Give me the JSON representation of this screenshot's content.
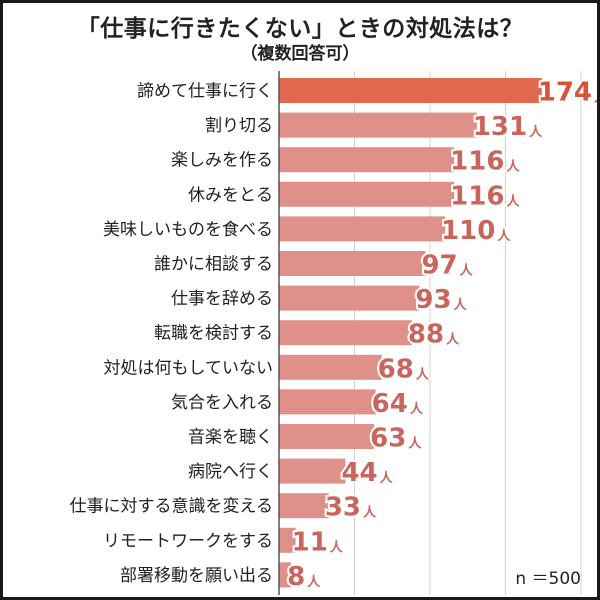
{
  "chart_data": {
    "type": "bar",
    "orientation": "horizontal",
    "title": "「仕事に行きたくない」ときの対処法は？",
    "subtitle": "（複数回答可）",
    "unit": "人",
    "sample_size": "n ＝500",
    "categories": [
      "諦めて仕事に行く",
      "割り切る",
      "楽しみを作る",
      "休みをとる",
      "美味しいものを食べる",
      "誰かに相談する",
      "仕事を辞める",
      "転職を検討する",
      "対処は何もしていない",
      "気合を入れる",
      "音楽を聴く",
      "病院へ行く",
      "仕事に対する意識を変える",
      "リモートワークをする",
      "部署移動を願い出る"
    ],
    "values": [
      174,
      131,
      116,
      116,
      110,
      97,
      93,
      88,
      68,
      64,
      63,
      44,
      33,
      11,
      8
    ],
    "xlim": [
      0,
      200
    ],
    "grid": true,
    "colors": {
      "highlight_bar": "#e2674f",
      "bar": "#df9088",
      "highlight_label": "#d9523b",
      "label": "#c8655c",
      "grid": "#d0d0d0",
      "axis": "#555555"
    }
  }
}
